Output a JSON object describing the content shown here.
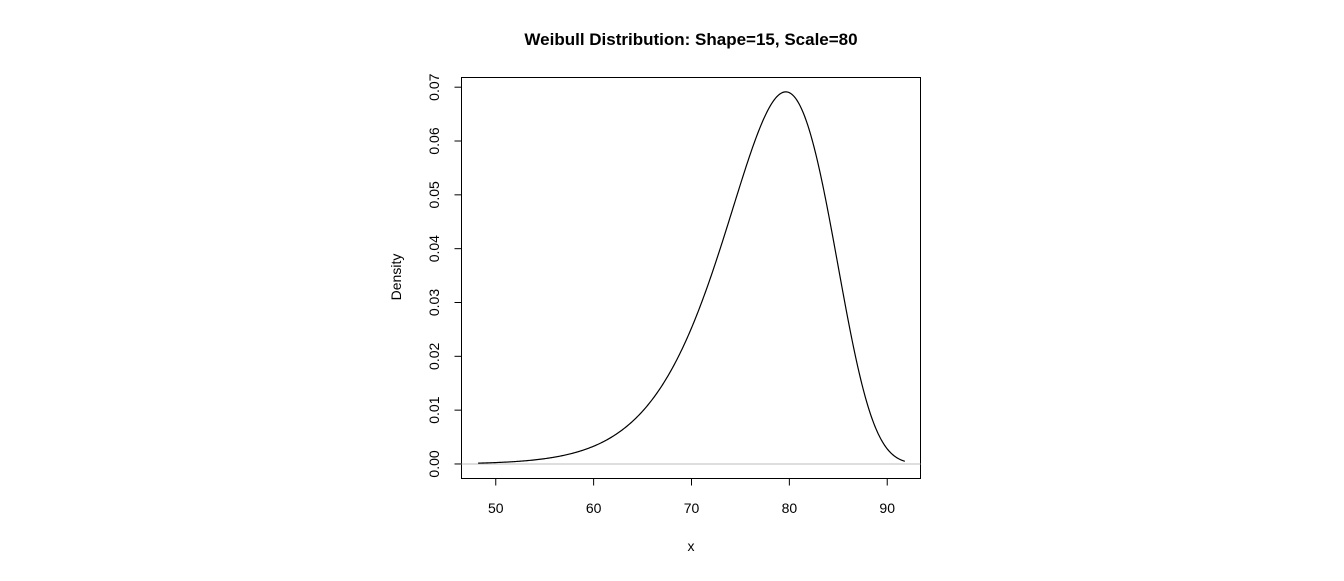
{
  "chart_data": {
    "type": "line",
    "title": "Weibull Distribution:  Shape=15, Scale=80",
    "xlabel": "x",
    "ylabel": "Density",
    "distribution": {
      "family": "weibull",
      "shape": 15,
      "scale": 80
    },
    "x_range": [
      48.2,
      91.8
    ],
    "xlim": [
      46.5,
      93.4
    ],
    "ylim": [
      -0.0027,
      0.0718
    ],
    "x_ticks": [
      50,
      60,
      70,
      80,
      90
    ],
    "y_ticks": [
      0.0,
      0.01,
      0.02,
      0.03,
      0.04,
      0.05,
      0.06,
      0.07
    ],
    "x_tick_labels": [
      "50",
      "60",
      "70",
      "80",
      "90"
    ],
    "y_tick_labels": [
      "0.00",
      "0.01",
      "0.02",
      "0.03",
      "0.04",
      "0.05",
      "0.06",
      "0.07"
    ],
    "series": [
      {
        "x": [
          48,
          50,
          52,
          54,
          56,
          58,
          60,
          62,
          64,
          66,
          68,
          70,
          72,
          74,
          76,
          78,
          79,
          80,
          82,
          84,
          86,
          88,
          90,
          92
        ],
        "y": [
          0.0001,
          0.0003,
          0.0005,
          0.0009,
          0.0015,
          0.0023,
          0.0035,
          0.0053,
          0.0078,
          0.0113,
          0.0161,
          0.0224,
          0.0304,
          0.0399,
          0.0504,
          0.0605,
          0.0646,
          0.0689,
          0.0623,
          0.0489,
          0.0315,
          0.0156,
          0.0055,
          0.0013
        ]
      }
    ],
    "baseline": {
      "y": 0,
      "color": "#bebebe"
    },
    "line_color": "#000000",
    "grid": false,
    "legend": "none"
  }
}
